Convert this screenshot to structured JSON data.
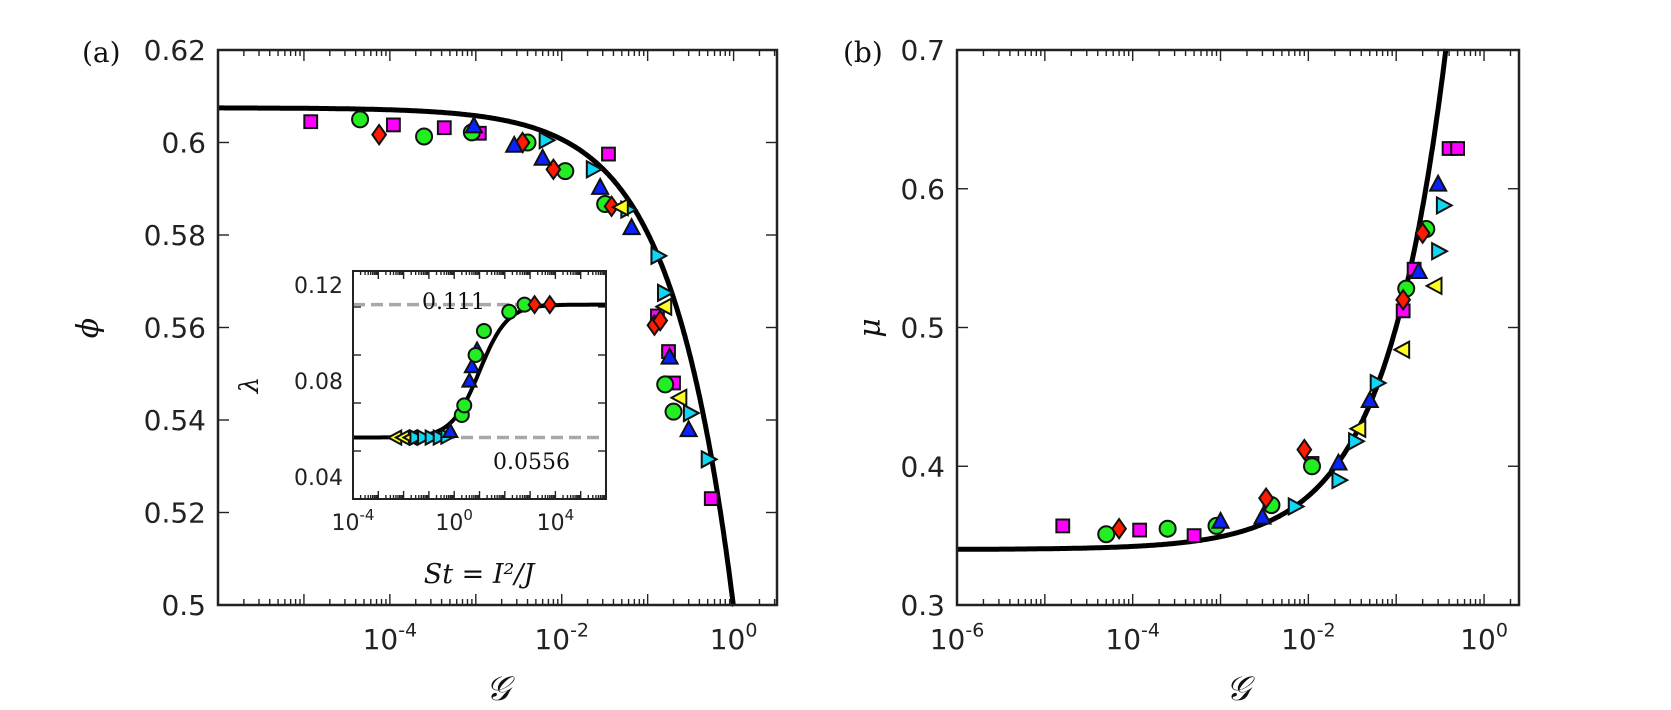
{
  "colors": {
    "magenta": "#ff00ff",
    "green": "#22ee22",
    "red": "#ff1a00",
    "blue": "#0a22ff",
    "cyan": "#11d6f4",
    "yellow": "#ffff22",
    "curve": "#000000",
    "dash": "#a8a8a8"
  },
  "chart_data": [
    {
      "panel_label": "(a)",
      "type": "scatter",
      "xscale": "log",
      "xlabel": "𝒢",
      "ylabel": "ϕ",
      "xlim": [
        1e-06,
        3.2
      ],
      "ylim": [
        0.5,
        0.62
      ],
      "xticks": [
        {
          "v": 0.0001,
          "base": "10",
          "exp": "-4"
        },
        {
          "v": 0.01,
          "base": "10",
          "exp": "-2"
        },
        {
          "v": 1,
          "base": "10",
          "exp": "0"
        }
      ],
      "yticks": [
        "0.5",
        "0.52",
        "0.54",
        "0.56",
        "0.58",
        "0.6",
        "0.62"
      ],
      "fit_curve": {
        "kind": "phi",
        "phi0": 0.6075,
        "k": 0.108,
        "n": 0.6
      },
      "series": [
        {
          "name": "magenta-square",
          "marker": "square",
          "color": "magenta",
          "points": [
            [
              1.2e-05,
              0.6045
            ],
            [
              0.00011,
              0.6038
            ],
            [
              0.00043,
              0.6032
            ],
            [
              0.0011,
              0.602
            ],
            [
              0.035,
              0.5975
            ],
            [
              0.13,
              0.5625
            ],
            [
              0.175,
              0.5548
            ],
            [
              0.2,
              0.548
            ],
            [
              0.55,
              0.523
            ]
          ]
        },
        {
          "name": "green-circle",
          "marker": "circle",
          "color": "green",
          "points": [
            [
              4.5e-05,
              0.605
            ],
            [
              0.00025,
              0.6013
            ],
            [
              0.0009,
              0.6022
            ],
            [
              0.004,
              0.6
            ],
            [
              0.011,
              0.5938
            ],
            [
              0.032,
              0.5867
            ],
            [
              0.16,
              0.5477
            ],
            [
              0.2,
              0.5418
            ]
          ]
        },
        {
          "name": "red-diamond",
          "marker": "diamond",
          "color": "red",
          "points": [
            [
              7.5e-05,
              0.6017
            ],
            [
              0.0035,
              0.6
            ],
            [
              0.008,
              0.5942
            ],
            [
              0.038,
              0.5862
            ],
            [
              0.12,
              0.5605
            ],
            [
              0.14,
              0.5615
            ]
          ]
        },
        {
          "name": "blue-up-triangle",
          "marker": "tri-up",
          "color": "blue",
          "points": [
            [
              0.00095,
              0.6035
            ],
            [
              0.0028,
              0.5993
            ],
            [
              0.006,
              0.5965
            ],
            [
              0.028,
              0.5902
            ],
            [
              0.065,
              0.5815
            ],
            [
              0.18,
              0.5535
            ],
            [
              0.3,
              0.5378
            ]
          ]
        },
        {
          "name": "cyan-right-triangle",
          "marker": "tri-right",
          "color": "cyan",
          "points": [
            [
              0.0065,
              0.6005
            ],
            [
              0.023,
              0.5942
            ],
            [
              0.058,
              0.5855
            ],
            [
              0.13,
              0.5755
            ],
            [
              0.155,
              0.5675
            ],
            [
              0.31,
              0.5415
            ],
            [
              0.5,
              0.5315
            ]
          ]
        },
        {
          "name": "yellow-left-triangle",
          "marker": "tri-left",
          "color": "yellow",
          "points": [
            [
              0.05,
              0.586
            ],
            [
              0.16,
              0.5645
            ],
            [
              0.24,
              0.5448
            ]
          ]
        }
      ],
      "inset": {
        "type": "scatter",
        "xscale": "log",
        "xlabel": "St = I²/J",
        "ylabel": "λ",
        "xlim": [
          0.0001,
          1000000
        ],
        "ylim": [
          0.03,
          0.125
        ],
        "xticks": [
          {
            "v": 0.0001,
            "base": "10",
            "exp": "-4"
          },
          {
            "v": 1,
            "base": "10",
            "exp": "0"
          },
          {
            "v": 10000,
            "base": "10",
            "exp": "4"
          }
        ],
        "yticks": [
          "0.04",
          "0.08",
          "0.12"
        ],
        "reference_lines": [
          {
            "y": 0.111,
            "label": "0.111"
          },
          {
            "y": 0.0556,
            "label": "0.0556"
          }
        ],
        "fit_curve": {
          "kind": "sigmoid",
          "low": 0.0556,
          "high": 0.111,
          "center": 10,
          "width": 1.1
        },
        "series": [
          {
            "name": "yellow-left-triangle",
            "marker": "tri-left",
            "color": "yellow",
            "points": [
              [
                0.005,
                0.0556
              ],
              [
                0.01,
                0.0556
              ],
              [
                0.02,
                0.0556
              ]
            ]
          },
          {
            "name": "cyan-right-triangle",
            "marker": "tri-right",
            "color": "cyan",
            "points": [
              [
                0.03,
                0.0556
              ],
              [
                0.06,
                0.0556
              ],
              [
                0.12,
                0.0556
              ],
              [
                0.25,
                0.0556
              ],
              [
                0.5,
                0.056
              ]
            ]
          },
          {
            "name": "blue-up-triangle",
            "marker": "tri-up",
            "color": "blue",
            "points": [
              [
                0.7,
                0.058
              ],
              [
                4,
                0.079
              ],
              [
                5,
                0.085
              ],
              [
                8,
                0.092
              ]
            ]
          },
          {
            "name": "green-circle",
            "marker": "circle",
            "color": "green",
            "points": [
              [
                2,
                0.065
              ],
              [
                2.5,
                0.069
              ],
              [
                7,
                0.09
              ],
              [
                15,
                0.1
              ],
              [
                150,
                0.108
              ],
              [
                600,
                0.111
              ]
            ]
          },
          {
            "name": "red-diamond",
            "marker": "diamond",
            "color": "red",
            "points": [
              [
                1500,
                0.111
              ],
              [
                6000,
                0.111
              ]
            ]
          }
        ]
      }
    },
    {
      "panel_label": "(b)",
      "type": "scatter",
      "xscale": "log",
      "xlabel": "𝒢",
      "ylabel": "μ",
      "xlim": [
        1e-06,
        2.5
      ],
      "ylim": [
        0.3,
        0.7
      ],
      "xticks": [
        {
          "v": 1e-06,
          "base": "10",
          "exp": "-6"
        },
        {
          "v": 0.0001,
          "base": "10",
          "exp": "-4"
        },
        {
          "v": 0.01,
          "base": "10",
          "exp": "-2"
        },
        {
          "v": 1,
          "base": "10",
          "exp": "0"
        }
      ],
      "yticks": [
        "0.3",
        "0.4",
        "0.5",
        "0.6",
        "0.7"
      ],
      "fit_curve": {
        "kind": "mu",
        "mu0": 0.34,
        "a": 0.67,
        "n": 0.62
      },
      "series": [
        {
          "name": "magenta-square",
          "marker": "square",
          "color": "magenta",
          "points": [
            [
              1.6e-05,
              0.357
            ],
            [
              0.00012,
              0.354
            ],
            [
              0.0005,
              0.35
            ],
            [
              0.011,
              0.402
            ],
            [
              0.12,
              0.512
            ],
            [
              0.16,
              0.542
            ],
            [
              0.4,
              0.629
            ],
            [
              0.5,
              0.629
            ]
          ]
        },
        {
          "name": "green-circle",
          "marker": "circle",
          "color": "green",
          "points": [
            [
              5e-05,
              0.351
            ],
            [
              0.00025,
              0.355
            ],
            [
              0.0009,
              0.357
            ],
            [
              0.0038,
              0.372
            ],
            [
              0.011,
              0.4
            ],
            [
              0.13,
              0.528
            ],
            [
              0.22,
              0.571
            ]
          ]
        },
        {
          "name": "red-diamond",
          "marker": "diamond",
          "color": "red",
          "points": [
            [
              7e-05,
              0.355
            ],
            [
              0.0033,
              0.377
            ],
            [
              0.009,
              0.412
            ],
            [
              0.12,
              0.52
            ],
            [
              0.2,
              0.568
            ]
          ]
        },
        {
          "name": "blue-up-triangle",
          "marker": "tri-up",
          "color": "blue",
          "points": [
            [
              0.001,
              0.36
            ],
            [
              0.003,
              0.363
            ],
            [
              0.022,
              0.402
            ],
            [
              0.05,
              0.447
            ],
            [
              0.18,
              0.54
            ],
            [
              0.3,
              0.603
            ]
          ]
        },
        {
          "name": "cyan-right-triangle",
          "marker": "tri-right",
          "color": "cyan",
          "points": [
            [
              0.007,
              0.371
            ],
            [
              0.022,
              0.39
            ],
            [
              0.034,
              0.418
            ],
            [
              0.06,
              0.46
            ],
            [
              0.3,
              0.555
            ],
            [
              0.34,
              0.588
            ]
          ]
        },
        {
          "name": "yellow-left-triangle",
          "marker": "tri-left",
          "color": "yellow",
          "points": [
            [
              0.038,
              0.427
            ],
            [
              0.12,
              0.484
            ],
            [
              0.28,
              0.53
            ]
          ]
        }
      ]
    }
  ]
}
